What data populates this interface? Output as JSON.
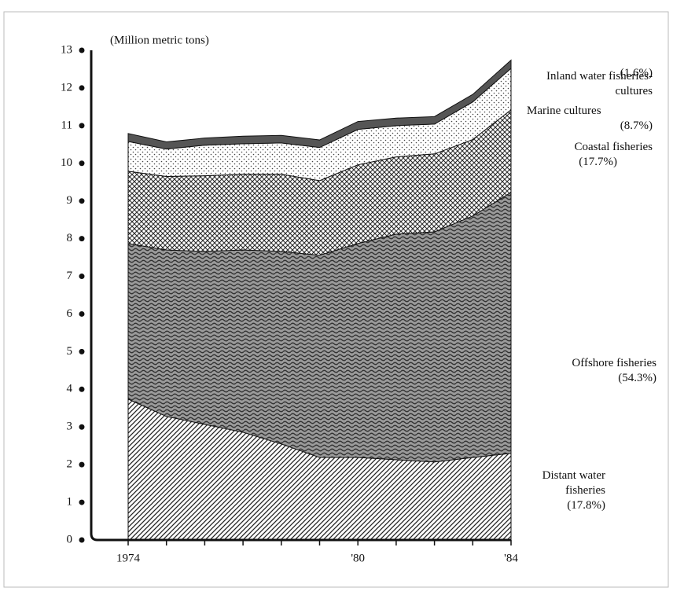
{
  "chart_data": {
    "type": "area",
    "y_label": "(Million metric tons)",
    "categories": [
      "1974",
      null,
      null,
      null,
      null,
      null,
      "'80",
      null,
      null,
      null,
      "'84"
    ],
    "ylim": [
      0,
      13
    ],
    "yticks": [
      0,
      1,
      2,
      3,
      4,
      5,
      6,
      7,
      8,
      9,
      10,
      11,
      12,
      13
    ],
    "series": [
      {
        "name": "Distant water fisheries",
        "share": "(17.8%)",
        "color": "#222222",
        "values": [
          3.74,
          3.28,
          3.07,
          2.86,
          2.55,
          2.19,
          2.19,
          2.13,
          2.07,
          2.19,
          2.3
        ]
      },
      {
        "name": "Offshore fisheries",
        "share": "(54.3%)",
        "color": "#333333",
        "values": [
          4.13,
          4.42,
          4.59,
          4.84,
          5.11,
          5.37,
          5.68,
          5.99,
          6.11,
          6.41,
          6.93
        ]
      },
      {
        "name": "Coastal fisheries",
        "share": "(17.7%)",
        "color": "#2a2a2a",
        "values": [
          1.92,
          1.95,
          2.01,
          2.01,
          2.05,
          1.98,
          2.09,
          2.05,
          2.07,
          2.03,
          2.19
        ]
      },
      {
        "name": "Marine cultures",
        "share": "(8.7%)",
        "color": "#444444",
        "values": [
          0.79,
          0.73,
          0.81,
          0.81,
          0.83,
          0.88,
          0.94,
          0.83,
          0.79,
          1.0,
          1.1
        ]
      },
      {
        "name": "Inland water fisheries-cultures",
        "share": "(1.6%)",
        "color": "#555555",
        "values": [
          0.21,
          0.19,
          0.19,
          0.2,
          0.2,
          0.2,
          0.21,
          0.2,
          0.2,
          0.2,
          0.22
        ]
      }
    ]
  }
}
